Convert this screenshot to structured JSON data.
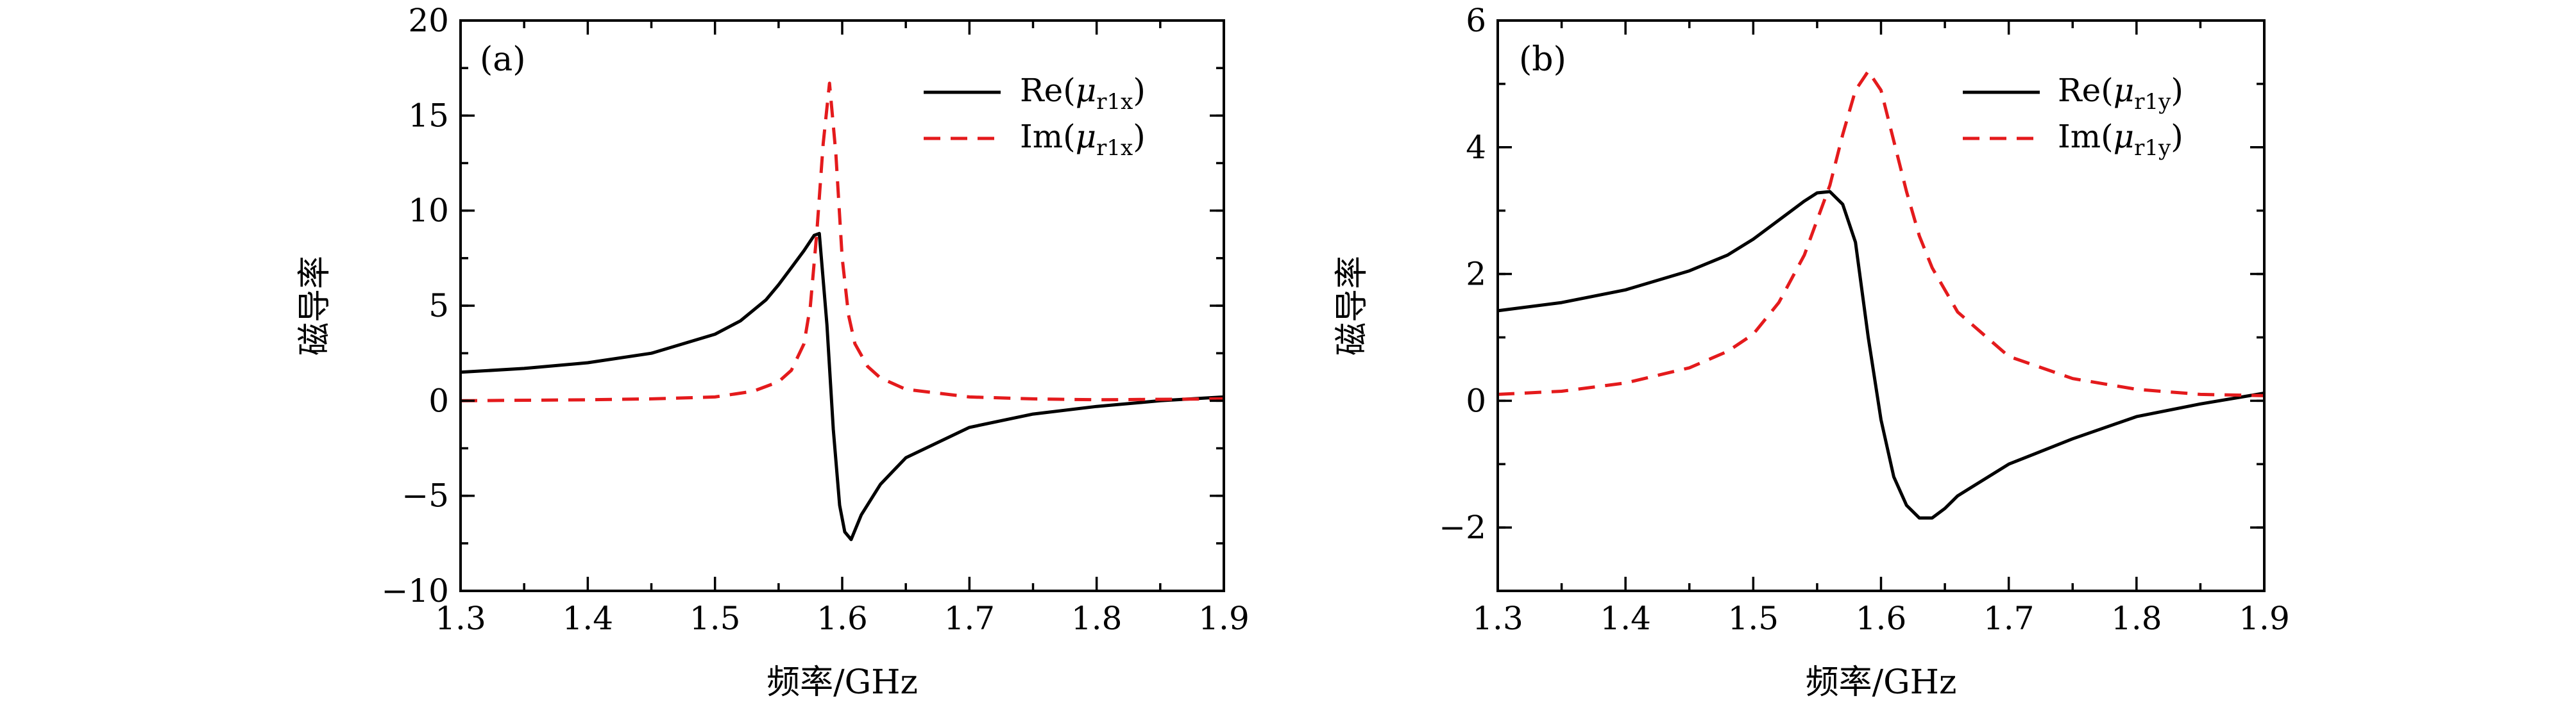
{
  "chart_data": [
    {
      "type": "line",
      "panel_label": "(a)",
      "xlabel": "频率/GHz",
      "ylabel": "磁导率",
      "xlim": [
        1.3,
        1.9
      ],
      "ylim": [
        -10,
        20
      ],
      "xticks": [
        "1.3",
        "1.4",
        "1.5",
        "1.6",
        "1.7",
        "1.8",
        "1.9"
      ],
      "yticks": [
        "−10",
        "−5",
        "0",
        "5",
        "10",
        "15",
        "20"
      ],
      "legend": "top-right",
      "grid": false,
      "series": [
        {
          "name": "Re(μr1x)",
          "legend_main": "Re(",
          "legend_mu": "μ",
          "legend_sub": "r1x",
          "legend_close": ")",
          "color": "#000000",
          "style": "solid",
          "x": [
            1.3,
            1.35,
            1.4,
            1.45,
            1.5,
            1.52,
            1.54,
            1.55,
            1.56,
            1.57,
            1.578,
            1.582,
            1.588,
            1.593,
            1.598,
            1.602,
            1.607,
            1.615,
            1.63,
            1.65,
            1.7,
            1.75,
            1.8,
            1.85,
            1.9
          ],
          "y": [
            1.5,
            1.7,
            2.0,
            2.5,
            3.5,
            4.2,
            5.3,
            6.1,
            7.0,
            7.9,
            8.7,
            8.8,
            4.0,
            -1.5,
            -5.5,
            -6.9,
            -7.3,
            -6.0,
            -4.4,
            -3.0,
            -1.4,
            -0.7,
            -0.3,
            0.0,
            0.2
          ]
        },
        {
          "name": "Im(μr1x)",
          "legend_main": "Im(",
          "legend_mu": "μ",
          "legend_sub": "r1x",
          "legend_close": ")",
          "color": "#e41a1c",
          "style": "dashed",
          "x": [
            1.3,
            1.4,
            1.45,
            1.5,
            1.53,
            1.55,
            1.56,
            1.57,
            1.575,
            1.58,
            1.585,
            1.59,
            1.595,
            1.6,
            1.605,
            1.61,
            1.62,
            1.63,
            1.65,
            1.7,
            1.75,
            1.8,
            1.9
          ],
          "y": [
            0.0,
            0.05,
            0.1,
            0.2,
            0.5,
            1.0,
            1.6,
            3.0,
            5.0,
            8.8,
            13.5,
            16.7,
            13.0,
            7.5,
            4.5,
            3.0,
            1.8,
            1.2,
            0.6,
            0.2,
            0.1,
            0.05,
            0.1
          ]
        }
      ]
    },
    {
      "type": "line",
      "panel_label": "(b)",
      "xlabel": "频率/GHz",
      "ylabel": "磁导率",
      "xlim": [
        1.3,
        1.9
      ],
      "ylim": [
        -3,
        6
      ],
      "xticks": [
        "1.3",
        "1.4",
        "1.5",
        "1.6",
        "1.7",
        "1.8",
        "1.9"
      ],
      "yticks": [
        "−2",
        "0",
        "2",
        "4",
        "6"
      ],
      "legend": "top-right",
      "grid": false,
      "series": [
        {
          "name": "Re(μr1y)",
          "legend_main": "Re(",
          "legend_mu": "μ",
          "legend_sub": "r1y",
          "legend_close": ")",
          "color": "#000000",
          "style": "solid",
          "x": [
            1.3,
            1.35,
            1.4,
            1.45,
            1.48,
            1.5,
            1.52,
            1.54,
            1.55,
            1.56,
            1.57,
            1.58,
            1.59,
            1.6,
            1.61,
            1.62,
            1.63,
            1.64,
            1.65,
            1.66,
            1.7,
            1.75,
            1.8,
            1.85,
            1.9
          ],
          "y": [
            1.42,
            1.55,
            1.75,
            2.05,
            2.3,
            2.55,
            2.85,
            3.15,
            3.28,
            3.3,
            3.1,
            2.5,
            1.0,
            -0.3,
            -1.2,
            -1.65,
            -1.85,
            -1.85,
            -1.7,
            -1.5,
            -1.0,
            -0.6,
            -0.25,
            -0.05,
            0.12
          ]
        },
        {
          "name": "Im(μr1y)",
          "legend_main": "Im(",
          "legend_mu": "μ",
          "legend_sub": "r1y",
          "legend_close": ")",
          "color": "#e41a1c",
          "style": "dashed",
          "x": [
            1.3,
            1.35,
            1.4,
            1.45,
            1.48,
            1.5,
            1.52,
            1.54,
            1.56,
            1.57,
            1.58,
            1.59,
            1.6,
            1.61,
            1.62,
            1.63,
            1.64,
            1.66,
            1.7,
            1.75,
            1.8,
            1.85,
            1.9
          ],
          "y": [
            0.1,
            0.15,
            0.28,
            0.52,
            0.78,
            1.05,
            1.55,
            2.3,
            3.4,
            4.2,
            4.9,
            5.2,
            4.9,
            4.1,
            3.3,
            2.6,
            2.1,
            1.4,
            0.7,
            0.35,
            0.18,
            0.1,
            0.08
          ]
        }
      ]
    }
  ]
}
